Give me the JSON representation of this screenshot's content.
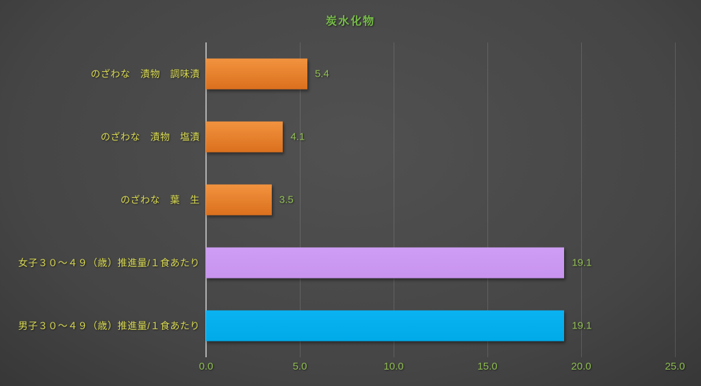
{
  "chart_data": {
    "type": "bar",
    "orientation": "horizontal",
    "title": "炭水化物",
    "categories": [
      "のざわな　漬物　調味漬",
      "のざわな　漬物　塩漬",
      "のざわな　葉　生",
      "女子３０～４９（歳）推進量/１食あたり",
      "男子３０～４９（歳）推進量/１食あたり"
    ],
    "values": [
      5.4,
      4.1,
      3.5,
      19.1,
      19.1
    ],
    "value_labels": [
      "5.4",
      "4.1",
      "3.5",
      "19.1",
      "19.1"
    ],
    "bar_fills": [
      {
        "top": "#F2933F",
        "bottom": "#DB701E"
      },
      {
        "top": "#F2933F",
        "bottom": "#DB701E"
      },
      {
        "top": "#F2933F",
        "bottom": "#DB701E"
      },
      {
        "top": "#CF9DF5",
        "bottom": "#C793EE"
      },
      {
        "top": "#0AB2F2",
        "bottom": "#00AAE8"
      }
    ],
    "x_ticks": [
      "0.0",
      "5.0",
      "10.0",
      "15.0",
      "20.0",
      "25.0"
    ],
    "x_tick_values": [
      0,
      5,
      10,
      15,
      20,
      25
    ],
    "xlim": [
      0,
      25
    ],
    "grid": "vertical-gridlines-on",
    "legend": "none"
  },
  "colors": {
    "title": "#77BC49",
    "category_label": "#D9DA52",
    "value_label": "#93C054",
    "tick_label": "#8FBE52",
    "axis_line": "#B3B3B3",
    "grid_line": "rgba(255,255,255,0.14)"
  }
}
